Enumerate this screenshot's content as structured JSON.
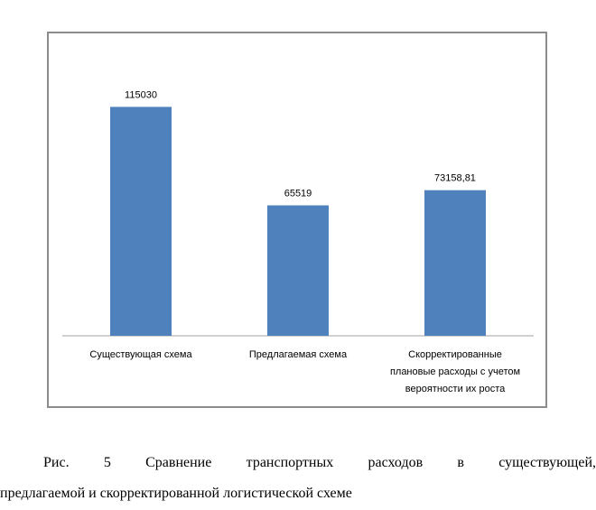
{
  "chart_data": {
    "type": "bar",
    "categories": [
      [
        "Существующая схема"
      ],
      [
        "Предлагаемая схема"
      ],
      [
        "Скорректированные",
        "плановые расходы с учетом",
        "вероятности их роста"
      ]
    ],
    "values": [
      115030,
      65519,
      73158.81
    ],
    "data_labels": [
      "115030",
      "65519",
      "73158,81"
    ],
    "bar_color": "#4f81bd",
    "ylim": [
      0,
      127000
    ],
    "grid": false,
    "legend": "none",
    "title": "",
    "xlabel": "",
    "ylabel": ""
  },
  "caption": {
    "line1": "Рис. 5 Сравнение транспортных расходов в существующей,",
    "line2": "предлагаемой и скорректированной логистической схеме"
  }
}
